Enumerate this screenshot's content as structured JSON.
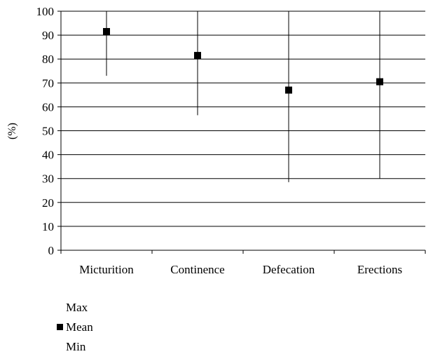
{
  "chart_data": {
    "type": "scatter",
    "title": "",
    "xlabel": "",
    "ylabel": "(%)",
    "ylim": [
      0,
      100
    ],
    "yticks": [
      0,
      10,
      20,
      30,
      40,
      50,
      60,
      70,
      80,
      90,
      100
    ],
    "grid": true,
    "legend_position": "bottom-left",
    "categories": [
      "Micturition",
      "Continence",
      "Defecation",
      "Erections"
    ],
    "series": [
      {
        "name": "Max",
        "values": [
          100,
          100,
          100,
          100
        ]
      },
      {
        "name": "Mean",
        "values": [
          91.5,
          81.5,
          67,
          70.5
        ]
      },
      {
        "name": "Min",
        "values": [
          73,
          56.5,
          28.5,
          30
        ]
      }
    ],
    "colors": {
      "marker": "#000000",
      "line": "#000000",
      "grid": "#000000"
    }
  }
}
